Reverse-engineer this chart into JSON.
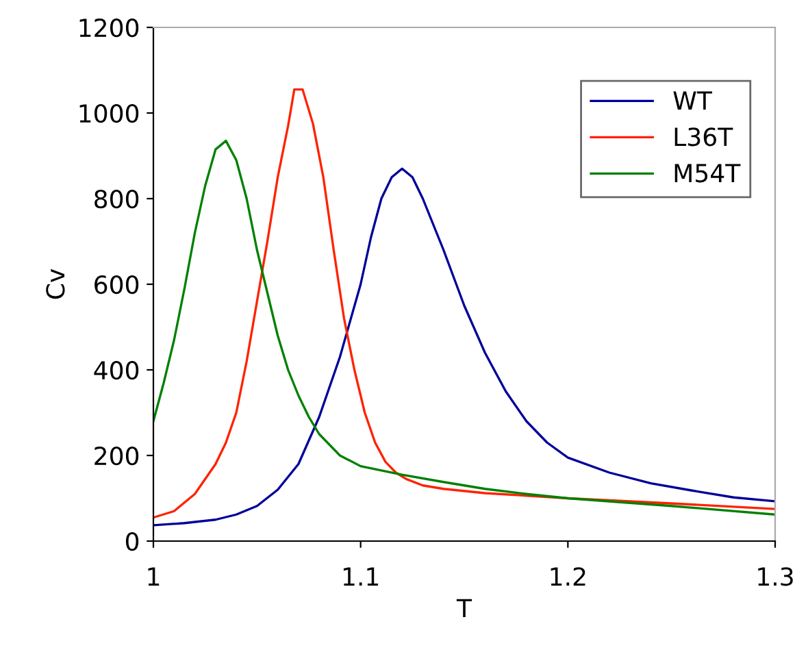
{
  "chart_data": {
    "type": "line",
    "xlabel": "T",
    "ylabel": "Cv",
    "xlim": [
      1,
      1.3
    ],
    "xticks": [
      1,
      1.1,
      1.2,
      1.3
    ],
    "ylim": [
      0,
      1200
    ],
    "yticks": [
      0,
      200,
      400,
      600,
      800,
      1000,
      1200
    ],
    "grid": false,
    "legend": "top right",
    "marker": "none",
    "line_style": "solid",
    "series": [
      {
        "name": "WT",
        "color": "#000099",
        "x": [
          1.0,
          1.015,
          1.03,
          1.04,
          1.05,
          1.06,
          1.07,
          1.08,
          1.09,
          1.1,
          1.105,
          1.11,
          1.115,
          1.12,
          1.125,
          1.13,
          1.14,
          1.15,
          1.16,
          1.17,
          1.18,
          1.19,
          1.2,
          1.22,
          1.24,
          1.26,
          1.28,
          1.3
        ],
        "values": [
          37,
          42,
          50,
          62,
          82,
          120,
          180,
          290,
          430,
          600,
          710,
          800,
          850,
          870,
          850,
          800,
          680,
          550,
          440,
          350,
          280,
          230,
          195,
          160,
          135,
          118,
          102,
          93
        ]
      },
      {
        "name": "L36T",
        "color": "#ff2200",
        "x": [
          1.0,
          1.01,
          1.02,
          1.03,
          1.035,
          1.04,
          1.045,
          1.05,
          1.055,
          1.06,
          1.065,
          1.068,
          1.072,
          1.077,
          1.082,
          1.087,
          1.092,
          1.097,
          1.102,
          1.107,
          1.112,
          1.117,
          1.122,
          1.13,
          1.14,
          1.16,
          1.2,
          1.25,
          1.3
        ],
        "values": [
          55,
          70,
          110,
          180,
          230,
          300,
          420,
          560,
          700,
          850,
          970,
          1055,
          1055,
          975,
          850,
          680,
          520,
          400,
          300,
          230,
          185,
          160,
          145,
          130,
          122,
          112,
          100,
          88,
          75
        ]
      },
      {
        "name": "M54T",
        "color": "#008000",
        "x": [
          1.0,
          1.005,
          1.01,
          1.015,
          1.02,
          1.025,
          1.03,
          1.035,
          1.04,
          1.045,
          1.05,
          1.055,
          1.06,
          1.065,
          1.07,
          1.075,
          1.08,
          1.09,
          1.1,
          1.12,
          1.14,
          1.16,
          1.18,
          1.2,
          1.25,
          1.3
        ],
        "values": [
          280,
          370,
          470,
          590,
          720,
          830,
          915,
          935,
          890,
          800,
          680,
          580,
          480,
          400,
          340,
          290,
          250,
          200,
          175,
          155,
          138,
          122,
          110,
          100,
          82,
          62
        ]
      }
    ]
  }
}
